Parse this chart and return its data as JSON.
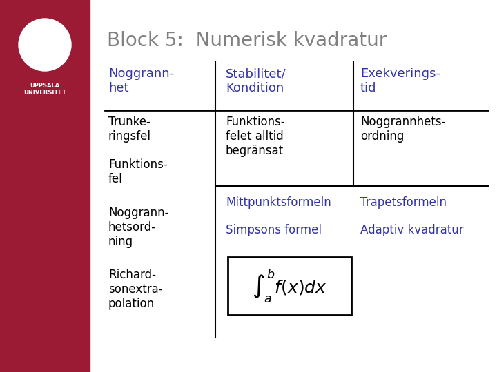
{
  "title": "Block 5:  Numerisk kvadratur",
  "title_color": "#808080",
  "sidebar_color": "#9B1B34",
  "bg_color": "#FFFFFF",
  "header_color": "#3333AA",
  "body_color": "#000000",
  "blue_color": "#3333AA",
  "col1_header": "Noggrann-\nhet",
  "col2_header": "Stabilitet/\nKondition",
  "col3_header": "Exekverings-\ntid",
  "col1_items": [
    "Trunke-\nringsfel",
    "Funktions-\nfel",
    "Noggrann-\nhetsord-\nning",
    "Richard-\nsonextra-\npolation"
  ],
  "col2_row1": "Funktions-\nfelet alltid\nbegränsat",
  "col3_row1": "Noggrannhets-\nordning",
  "row2_items": [
    "Mittpunktsformeln",
    "Trapetsformeln",
    "Simpsons formel",
    "Adaptiv kvadratur"
  ],
  "formula": "$\\int_a^b f(x)dx$"
}
